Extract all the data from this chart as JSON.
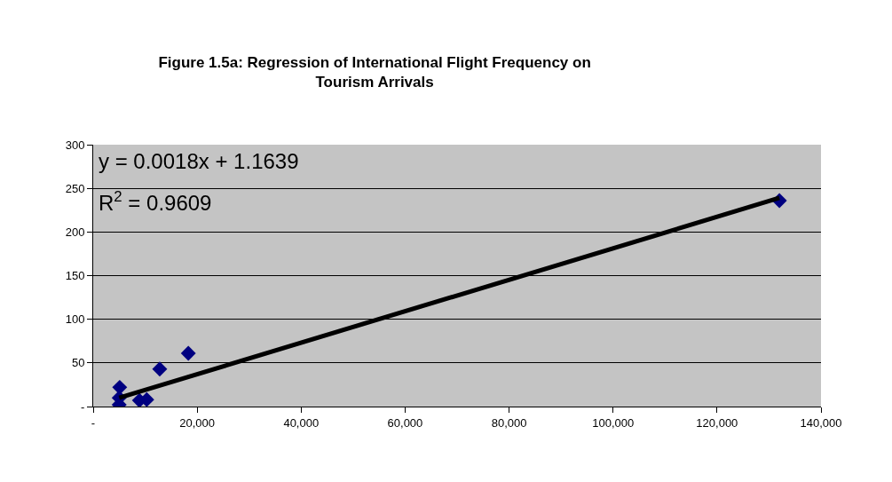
{
  "chart_data": {
    "type": "scatter",
    "title": "Figure 1.5a: Regression of International Flight Frequency on Tourism Arrivals",
    "series": [
      {
        "color": "#000080",
        "marker": "diamond",
        "x": [
          5100,
          5000,
          5000,
          8900,
          10300,
          12800,
          18300,
          132000
        ],
        "values": [
          22,
          2,
          10,
          7,
          8,
          43,
          61,
          236
        ]
      },
      {
        "type": "line",
        "color": "#000000",
        "marker": "none",
        "x": [
          5000,
          132000
        ],
        "values": [
          10,
          239
        ]
      }
    ],
    "xlim": [
      0,
      140000
    ],
    "ylim": [
      0,
      300
    ],
    "xticks": [
      {
        "value": 0,
        "label": "-"
      },
      {
        "value": 20000,
        "label": "20,000"
      },
      {
        "value": 40000,
        "label": "40,000"
      },
      {
        "value": 60000,
        "label": "60,000"
      },
      {
        "value": 80000,
        "label": "80,000"
      },
      {
        "value": 100000,
        "label": "100,000"
      },
      {
        "value": 120000,
        "label": "120,000"
      },
      {
        "value": 140000,
        "label": "140,000"
      }
    ],
    "yticks": [
      {
        "value": 0,
        "label": "-"
      },
      50,
      100,
      150,
      200,
      250,
      300
    ],
    "grid": "y",
    "annotations": [
      "y = 0.0018x + 1.1639",
      "R$^{2}$ = 0.9609"
    ]
  }
}
